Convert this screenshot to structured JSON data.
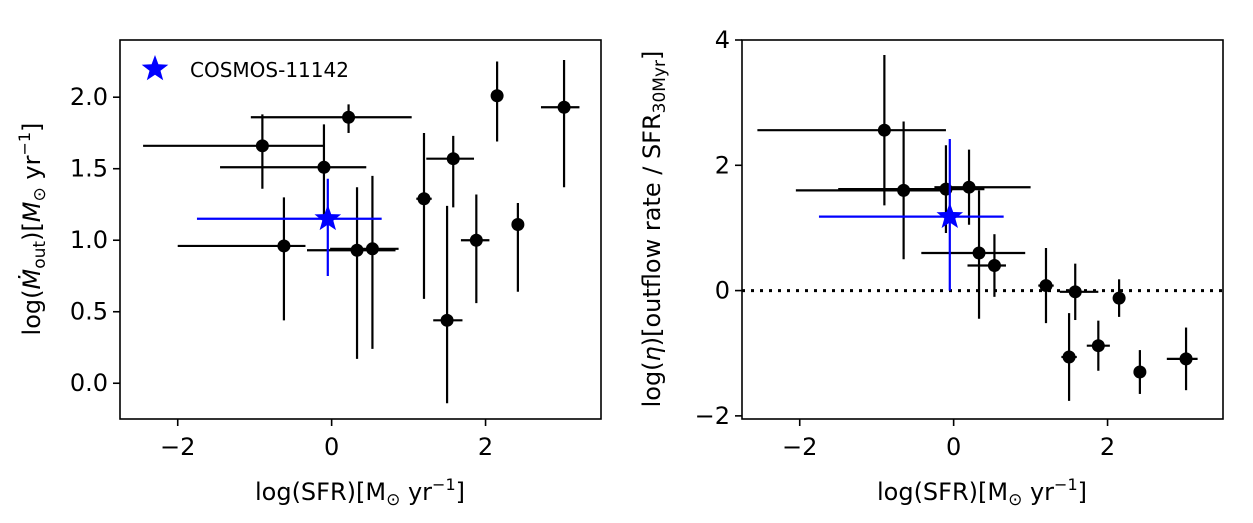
{
  "chart_data": [
    {
      "type": "scatter",
      "panel": "left",
      "xlabel": "log(SFR)[M_⊙ yr^-1]",
      "ylabel": "log(Ṁ_out)[M_⊙ yr^-1]",
      "xlim": [
        -2.75,
        3.5
      ],
      "ylim": [
        -0.25,
        2.4
      ],
      "xticks": [
        -2,
        0,
        2
      ],
      "xtick_labels": [
        "−2",
        "0",
        "2"
      ],
      "yticks": [
        0.0,
        0.5,
        1.0,
        1.5,
        2.0
      ],
      "ytick_labels": [
        "0.0",
        "0.5",
        "1.0",
        "1.5",
        "2.0"
      ],
      "legend": {
        "label": "COSMOS-11142",
        "position": "top-left",
        "color": "#0000ff"
      },
      "highlight": {
        "name": "COSMOS-11142",
        "x": -0.05,
        "y": 1.15,
        "xerr": [
          1.7,
          0.7
        ],
        "yerr": [
          0.4,
          0.28
        ],
        "color": "#0000ff",
        "marker": "star"
      },
      "points": [
        {
          "x": -0.9,
          "y": 1.66,
          "xerr": [
            1.55,
            0.8
          ],
          "yerr": [
            0.3,
            0.22
          ]
        },
        {
          "x": 0.22,
          "y": 1.86,
          "xerr": [
            1.27,
            0.82
          ],
          "yerr": [
            0.11,
            0.09
          ]
        },
        {
          "x": -0.1,
          "y": 1.51,
          "xerr": [
            1.35,
            0.55
          ],
          "yerr": [
            0.33,
            0.3
          ]
        },
        {
          "x": -0.62,
          "y": 0.96,
          "xerr": [
            1.38,
            0.28
          ],
          "yerr": [
            0.52,
            0.34
          ]
        },
        {
          "x": 0.33,
          "y": 0.93,
          "xerr": [
            0.65,
            0.5
          ],
          "yerr": [
            0.76,
            0.44
          ]
        },
        {
          "x": 0.53,
          "y": 0.94,
          "xerr": [
            0.55,
            0.34
          ],
          "yerr": [
            0.7,
            0.51
          ]
        },
        {
          "x": 1.2,
          "y": 1.29,
          "xerr": [
            0.1,
            0.1
          ],
          "yerr": [
            0.7,
            0.46
          ]
        },
        {
          "x": 1.58,
          "y": 1.57,
          "xerr": [
            0.35,
            0.27
          ],
          "yerr": [
            0.34,
            0.16
          ]
        },
        {
          "x": 1.5,
          "y": 0.44,
          "xerr": [
            0.18,
            0.2
          ],
          "yerr": [
            0.58,
            0.8
          ]
        },
        {
          "x": 1.88,
          "y": 1.0,
          "xerr": [
            0.2,
            0.17
          ],
          "yerr": [
            0.44,
            0.32
          ]
        },
        {
          "x": 2.15,
          "y": 2.01,
          "xerr": [
            0.02,
            0.02
          ],
          "yerr": [
            0.32,
            0.24
          ]
        },
        {
          "x": 2.42,
          "y": 1.11,
          "xerr": [
            0.05,
            0.05
          ],
          "yerr": [
            0.47,
            0.15
          ]
        },
        {
          "x": 3.02,
          "y": 1.93,
          "xerr": [
            0.3,
            0.2
          ],
          "yerr": [
            0.56,
            0.33
          ]
        }
      ]
    },
    {
      "type": "scatter",
      "panel": "right",
      "xlabel": "log(SFR)[M_⊙ yr^-1]",
      "ylabel": "log(η)[outflow rate / SFR_30Myr]",
      "xlim": [
        -2.75,
        3.5
      ],
      "ylim": [
        -2.05,
        4.0
      ],
      "xticks": [
        -2,
        0,
        2
      ],
      "xtick_labels": [
        "−2",
        "0",
        "2"
      ],
      "yticks": [
        -2,
        0,
        2,
        4
      ],
      "ytick_labels": [
        "−2",
        "0",
        "2",
        "4"
      ],
      "reference_line": {
        "y": 0,
        "style": "dotted"
      },
      "highlight": {
        "name": "COSMOS-11142",
        "x": -0.05,
        "y": 1.18,
        "xerr": [
          1.7,
          0.7
        ],
        "yerr": [
          1.18,
          1.24
        ],
        "color": "#0000ff",
        "marker": "star"
      },
      "points": [
        {
          "x": -0.9,
          "y": 2.56,
          "xerr": [
            1.65,
            0.8
          ],
          "yerr": [
            1.2,
            1.2
          ]
        },
        {
          "x": -0.65,
          "y": 1.6,
          "xerr": [
            1.4,
            0.55
          ],
          "yerr": [
            1.1,
            1.1
          ]
        },
        {
          "x": -0.1,
          "y": 1.62,
          "xerr": [
            1.4,
            0.5
          ],
          "yerr": [
            0.7,
            0.7
          ]
        },
        {
          "x": 0.2,
          "y": 1.65,
          "xerr": [
            0.45,
            0.8
          ],
          "yerr": [
            0.6,
            0.6
          ]
        },
        {
          "x": 0.33,
          "y": 0.6,
          "xerr": [
            0.75,
            0.6
          ],
          "yerr": [
            1.05,
            1.0
          ]
        },
        {
          "x": 0.53,
          "y": 0.4,
          "xerr": [
            0.35,
            0.15
          ],
          "yerr": [
            0.5,
            0.5
          ]
        },
        {
          "x": 1.2,
          "y": 0.08,
          "xerr": [
            0.1,
            0.1
          ],
          "yerr": [
            0.6,
            0.6
          ]
        },
        {
          "x": 1.58,
          "y": -0.02,
          "xerr": [
            0.2,
            0.3
          ],
          "yerr": [
            0.45,
            0.45
          ]
        },
        {
          "x": 1.5,
          "y": -1.06,
          "xerr": [
            0.1,
            0.1
          ],
          "yerr": [
            0.7,
            0.7
          ]
        },
        {
          "x": 1.88,
          "y": -0.88,
          "xerr": [
            0.15,
            0.15
          ],
          "yerr": [
            0.4,
            0.4
          ]
        },
        {
          "x": 2.15,
          "y": -0.12,
          "xerr": [
            0.02,
            0.02
          ],
          "yerr": [
            0.3,
            0.3
          ]
        },
        {
          "x": 2.42,
          "y": -1.3,
          "xerr": [
            0.05,
            0.05
          ],
          "yerr": [
            0.35,
            0.35
          ]
        },
        {
          "x": 3.02,
          "y": -1.09,
          "xerr": [
            0.25,
            0.15
          ],
          "yerr": [
            0.5,
            0.5
          ]
        }
      ]
    }
  ]
}
